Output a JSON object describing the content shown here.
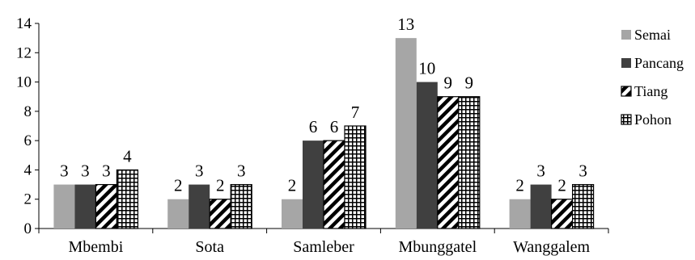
{
  "chart_data": {
    "type": "bar",
    "categories": [
      "Mbembi",
      "Sota",
      "Samleber",
      "Mbunggatel",
      "Wanggalem"
    ],
    "series": [
      {
        "name": "Semai",
        "values": [
          3,
          2,
          2,
          13,
          2
        ],
        "color": "#a6a6a6",
        "pattern": "solid"
      },
      {
        "name": "Pancang",
        "values": [
          3,
          3,
          6,
          10,
          3
        ],
        "color": "#404040",
        "pattern": "solid"
      },
      {
        "name": "Tiang",
        "values": [
          3,
          2,
          6,
          9,
          2
        ],
        "color": "#000000",
        "pattern": "diagonal"
      },
      {
        "name": "Pohon",
        "values": [
          4,
          3,
          7,
          9,
          3
        ],
        "color": "#000000",
        "pattern": "grid"
      }
    ],
    "ylim": [
      0,
      14
    ],
    "yticks": [
      0,
      2,
      4,
      6,
      8,
      10,
      12,
      14
    ],
    "grid": false,
    "legend_position": "right",
    "title": "",
    "xlabel": "",
    "ylabel": ""
  }
}
